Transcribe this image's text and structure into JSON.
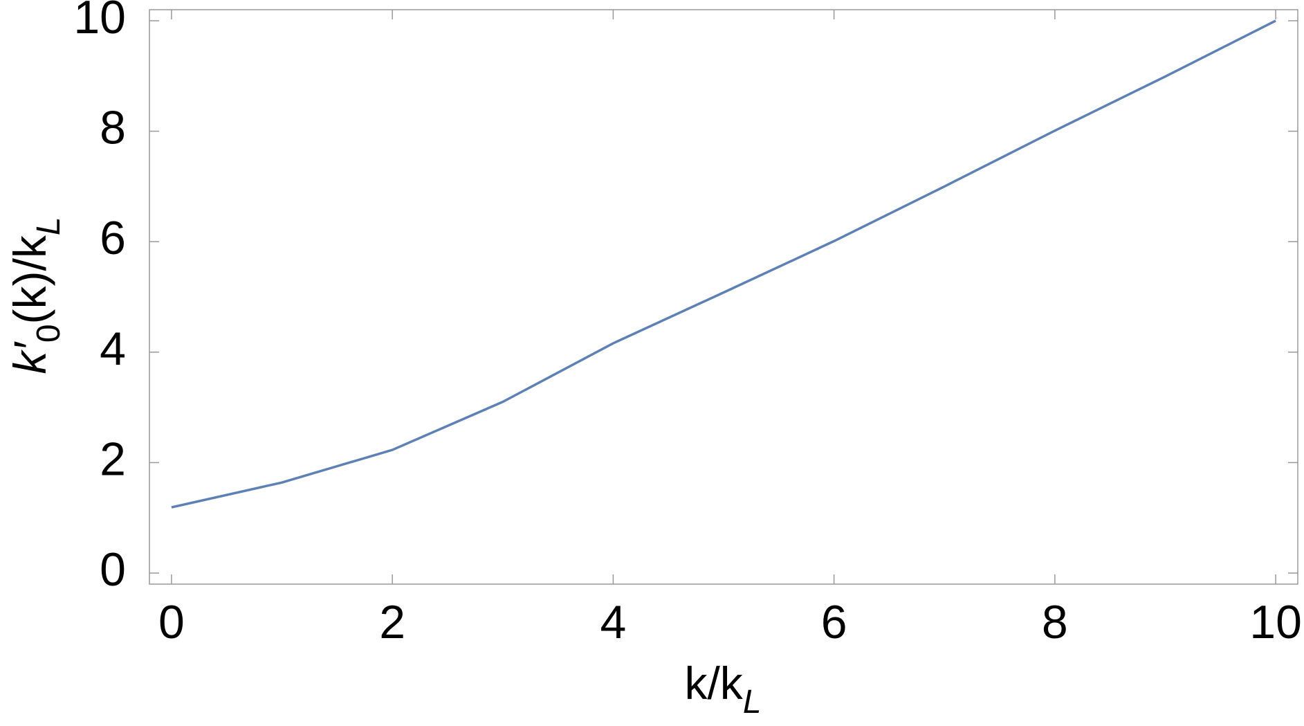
{
  "chart_data": {
    "type": "line",
    "xlabel": [
      "k/k",
      "L"
    ],
    "ylabel": [
      "k′",
      "0",
      "(k)/k",
      "L"
    ],
    "x": [
      0,
      1,
      2,
      3,
      4,
      5,
      6,
      7,
      8,
      9,
      10
    ],
    "series": [
      {
        "color": "#5e81b5",
        "values": [
          1.19,
          1.64,
          2.23,
          3.1,
          4.16,
          5.08,
          6.01,
          7.0,
          8.01,
          8.99,
          10.0
        ]
      }
    ],
    "xlim": [
      -0.2,
      10.2
    ],
    "ylim": [
      -0.2,
      10.2
    ],
    "xticks": [
      0,
      2,
      4,
      6,
      8,
      10
    ],
    "yticks": [
      0,
      2,
      4,
      6,
      8,
      10
    ],
    "grid": false
  }
}
